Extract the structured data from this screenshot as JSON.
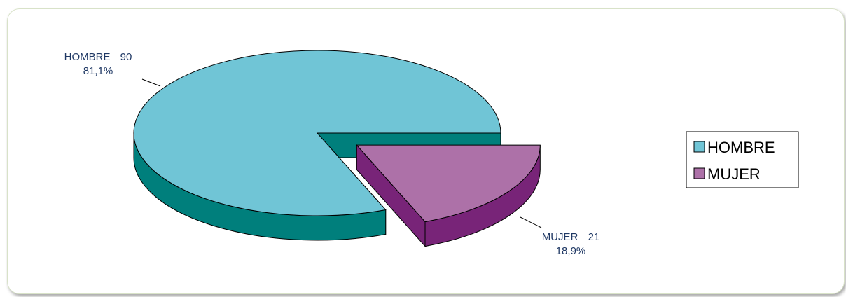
{
  "chart_data": {
    "type": "pie",
    "categories": [
      "HOMBRE",
      "MUJER"
    ],
    "values": [
      90,
      21
    ],
    "percentages": [
      "81,1%",
      "18,9%"
    ],
    "data_labels": [
      {
        "name": "HOMBRE",
        "value": "90",
        "percent": "81,1%"
      },
      {
        "name": "MUJER",
        "value": "21",
        "percent": "18,9%"
      }
    ],
    "legend": {
      "position": "right",
      "items": [
        {
          "label": "HOMBRE",
          "color": "#70c5d6"
        },
        {
          "label": "MUJER",
          "color": "#ad71a8"
        }
      ]
    },
    "colors": {
      "HOMBRE": {
        "top": "#70c5d6",
        "side": "#007f7c"
      },
      "MUJER": {
        "top": "#ad71a8",
        "side": "#782478"
      }
    },
    "style": "3d-exploded"
  }
}
